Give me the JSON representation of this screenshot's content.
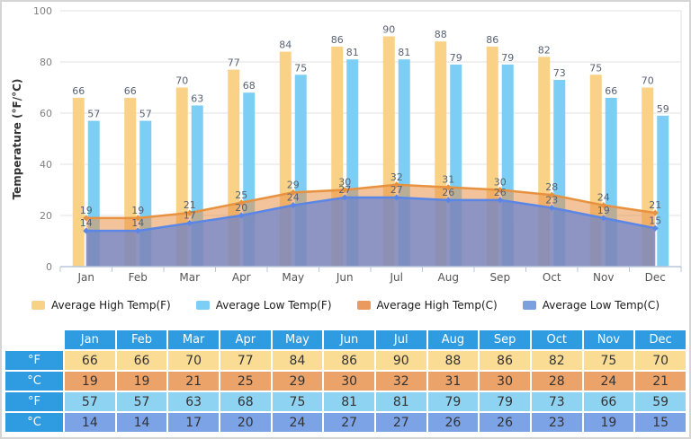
{
  "chart_data": {
    "type": "bar+area",
    "title": "",
    "ylabel": "Temperature (°F/°C)",
    "xlabel": "",
    "ylim": [
      0,
      100
    ],
    "yticks": [
      0,
      20,
      40,
      60,
      80,
      100
    ],
    "grid": true,
    "legend_position": "bottom",
    "categories": [
      "Jan",
      "Feb",
      "Mar",
      "Apr",
      "May",
      "Jun",
      "Jul",
      "Aug",
      "Sep",
      "Oct",
      "Nov",
      "Dec"
    ],
    "series": [
      {
        "name": "Average High Temp(F)",
        "type": "bar",
        "color": "#F9D287",
        "legend_color": "#F9D287",
        "values": [
          66,
          66,
          70,
          77,
          84,
          86,
          90,
          88,
          86,
          82,
          75,
          70
        ]
      },
      {
        "name": "Average Low Temp(F)",
        "type": "bar",
        "color": "#7CCEF4",
        "legend_color": "#7CCEF4",
        "values": [
          57,
          57,
          63,
          68,
          75,
          81,
          81,
          79,
          79,
          73,
          66,
          59
        ]
      },
      {
        "name": "Average High Temp(C)",
        "type": "area",
        "line_color": "#E8923F",
        "fill_color": "rgba(233,146,72,0.55)",
        "legend_color": "#E99A5C",
        "values": [
          19,
          19,
          21,
          25,
          29,
          30,
          32,
          31,
          30,
          28,
          24,
          21
        ]
      },
      {
        "name": "Average Low Temp(C)",
        "type": "area",
        "line_color": "#5A86E8",
        "fill_color": "rgba(102,131,209,0.72)",
        "legend_color": "#7BA0DF",
        "values": [
          14,
          14,
          17,
          20,
          24,
          27,
          27,
          26,
          26,
          23,
          19,
          15
        ]
      }
    ],
    "colors": {
      "gridline": "#e2e2e2",
      "axis_line": "#b9c6db",
      "tick_label": "#808080",
      "month_label": "#555555",
      "value_label": "#596273"
    }
  },
  "table": {
    "columns": [
      "Jan",
      "Feb",
      "Mar",
      "Apr",
      "May",
      "Jun",
      "Jul",
      "Aug",
      "Sep",
      "Oct",
      "Nov",
      "Dec"
    ],
    "header_bg": "#2F9BE0",
    "rows": [
      {
        "label": "°F",
        "bg": "#FBDC95",
        "values": [
          66,
          66,
          70,
          77,
          84,
          86,
          90,
          88,
          86,
          82,
          75,
          70
        ]
      },
      {
        "label": "°C",
        "bg": "#ECA369",
        "values": [
          19,
          19,
          21,
          25,
          29,
          30,
          32,
          31,
          30,
          28,
          24,
          21
        ]
      },
      {
        "label": "°F",
        "bg": "#8FD3F3",
        "values": [
          57,
          57,
          63,
          68,
          75,
          81,
          81,
          79,
          79,
          73,
          66,
          59
        ]
      },
      {
        "label": "°C",
        "bg": "#7BA3E6",
        "values": [
          14,
          14,
          17,
          20,
          24,
          27,
          27,
          26,
          26,
          23,
          19,
          15
        ]
      }
    ]
  }
}
